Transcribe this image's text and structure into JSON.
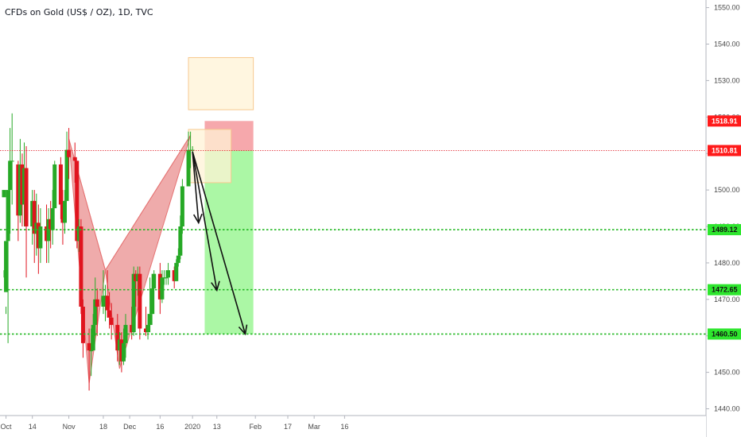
{
  "chart_title": "CFDs on Gold (US$ / OZ), 1D, TVC",
  "colors": {
    "up": "#26a926",
    "down": "#e0141e",
    "pattern": "#e57373",
    "support": "#22b822",
    "current": "#e0141e",
    "target_zone": "#a6f7a0",
    "stop_zone": "#f5a3a8",
    "box_fill": "#fff3d6",
    "box_stroke": "#f7c98f"
  },
  "chart_data": {
    "type": "candlestick",
    "y_range": [
      1438,
      1555
    ],
    "price_ticks": [
      1440,
      1450,
      1460,
      1470,
      1480,
      1490,
      1500,
      1510,
      1520,
      1530,
      1540,
      1550
    ],
    "x_tick_labels": [
      "Oct",
      "14",
      "Nov",
      "18",
      "Dec",
      "16",
      "2020",
      "13",
      "Feb",
      "17",
      "Mar",
      "16"
    ],
    "price_labels": [
      {
        "text": "1518.91",
        "value": 1518.91,
        "color": "red"
      },
      {
        "text": "1510.81",
        "value": 1510.81,
        "color": "red"
      },
      {
        "text": "1489.12",
        "value": 1489.12,
        "color": "green"
      },
      {
        "text": "1472.65",
        "value": 1472.65,
        "color": "green"
      },
      {
        "text": "1460.50",
        "value": 1460.5,
        "color": "green"
      }
    ],
    "candles": [
      [
        1498,
        1500,
        1478,
        1476,
        "2019-09-30"
      ],
      [
        1472,
        1486,
        1468,
        1466,
        "2019-10-01"
      ],
      [
        1486,
        1500,
        1486,
        1458,
        "2019-10-02"
      ],
      [
        1500,
        1508,
        1517,
        1488,
        "2019-10-03"
      ],
      [
        1508,
        1508,
        1521,
        1496,
        "2019-10-04"
      ],
      [
        1507,
        1493,
        1508,
        1486,
        "2019-10-07"
      ],
      [
        1493,
        1507,
        1514,
        1491,
        "2019-10-08"
      ],
      [
        1507,
        1496,
        1510,
        1490,
        "2019-10-09"
      ],
      [
        1496,
        1506,
        1513,
        1490,
        "2019-10-10"
      ],
      [
        1506,
        1490,
        1512,
        1476,
        "2019-10-11"
      ],
      [
        1490,
        1497,
        1500,
        1485,
        "2019-10-14"
      ],
      [
        1497,
        1488,
        1500,
        1480,
        "2019-10-15"
      ],
      [
        1488,
        1491,
        1499,
        1482,
        "2019-10-16"
      ],
      [
        1491,
        1484,
        1496,
        1477,
        "2019-10-17"
      ],
      [
        1484,
        1490,
        1495,
        1480,
        "2019-10-18"
      ],
      [
        1490,
        1486,
        1496,
        1480,
        "2019-10-21"
      ],
      [
        1486,
        1492,
        1495,
        1480,
        "2019-10-22"
      ],
      [
        1492,
        1489,
        1497,
        1484,
        "2019-10-23"
      ],
      [
        1489,
        1495,
        1500,
        1485,
        "2019-10-24"
      ],
      [
        1495,
        1507,
        1508,
        1495,
        "2019-10-25"
      ],
      [
        1507,
        1496,
        1509,
        1492,
        "2019-10-28"
      ],
      [
        1496,
        1491,
        1500,
        1485,
        "2019-10-29"
      ],
      [
        1491,
        1497,
        1500,
        1488,
        "2019-10-30"
      ],
      [
        1497,
        1511,
        1516,
        1497,
        "2019-10-31"
      ],
      [
        1511,
        1509,
        1517,
        1503,
        "2019-11-01"
      ],
      [
        1509,
        1508,
        1513,
        1502,
        "2019-11-04"
      ],
      [
        1508,
        1486,
        1508,
        1484,
        "2019-11-05"
      ],
      [
        1486,
        1490,
        1492,
        1483,
        "2019-11-06"
      ],
      [
        1490,
        1468,
        1492,
        1466,
        "2019-11-07"
      ],
      [
        1468,
        1458,
        1470,
        1454,
        "2019-11-08"
      ],
      [
        1458,
        1456,
        1462,
        1445,
        "2019-11-11"
      ],
      [
        1456,
        1456,
        1462,
        1449,
        "2019-11-12"
      ],
      [
        1456,
        1463,
        1466,
        1456,
        "2019-11-13"
      ],
      [
        1463,
        1470,
        1476,
        1460,
        "2019-11-14"
      ],
      [
        1470,
        1468,
        1473,
        1460,
        "2019-11-15"
      ],
      [
        1468,
        1471,
        1478,
        1466,
        "2019-11-18"
      ],
      [
        1471,
        1471,
        1474,
        1464,
        "2019-11-19"
      ],
      [
        1471,
        1467,
        1478,
        1465,
        "2019-11-20"
      ],
      [
        1467,
        1465,
        1472,
        1462,
        "2019-11-21"
      ],
      [
        1465,
        1463,
        1469,
        1459,
        "2019-11-22"
      ],
      [
        1463,
        1456,
        1466,
        1453,
        "2019-11-25"
      ],
      [
        1456,
        1459,
        1461,
        1452,
        "2019-11-26"
      ],
      [
        1459,
        1453,
        1461,
        1450,
        "2019-11-27"
      ],
      [
        1453,
        1458,
        1462,
        1452,
        "2019-11-28"
      ],
      [
        1458,
        1463,
        1466,
        1454,
        "2019-11-29"
      ],
      [
        1463,
        1461,
        1468,
        1459,
        "2019-12-02"
      ],
      [
        1461,
        1477,
        1479,
        1460,
        "2019-12-03"
      ],
      [
        1477,
        1475,
        1478,
        1468,
        "2019-12-04"
      ],
      [
        1475,
        1477,
        1479,
        1471,
        "2019-12-05"
      ],
      [
        1477,
        1462,
        1479,
        1459,
        "2019-12-06"
      ],
      [
        1462,
        1461,
        1468,
        1460,
        "2019-12-09"
      ],
      [
        1461,
        1463,
        1466,
        1459,
        "2019-12-10"
      ],
      [
        1463,
        1466,
        1476,
        1461,
        "2019-12-11"
      ],
      [
        1466,
        1473,
        1477,
        1463,
        "2019-12-12"
      ],
      [
        1473,
        1477,
        1478,
        1466,
        "2019-12-13"
      ],
      [
        1477,
        1470,
        1480,
        1466,
        "2019-12-16"
      ],
      [
        1470,
        1476,
        1478,
        1469,
        "2019-12-17"
      ],
      [
        1476,
        1476,
        1478,
        1474,
        "2019-12-18"
      ],
      [
        1476,
        1476,
        1478,
        1474,
        "2019-12-19"
      ],
      [
        1476,
        1478,
        1480,
        1474,
        "2019-12-20"
      ],
      [
        1478,
        1475,
        1479,
        1473,
        "2019-12-23"
      ],
      [
        1475,
        1480,
        1481,
        1475,
        "2019-12-24"
      ],
      [
        1480,
        1482,
        1484,
        1479,
        "2019-12-25"
      ],
      [
        1482,
        1490,
        1493,
        1481,
        "2019-12-26"
      ],
      [
        1490,
        1501,
        1503,
        1488,
        "2019-12-27"
      ],
      [
        1501,
        1511,
        1516,
        1502,
        "2019-12-30"
      ],
      [
        1511,
        1511,
        1516,
        1506,
        "2019-12-31"
      ],
      [
        1511,
        1511,
        1512,
        1510,
        "2020-01-01"
      ]
    ]
  },
  "patterns": [
    {
      "name": "bearish harmonic pattern",
      "points": [
        [
          "2019-11-01",
          1514
        ],
        [
          "2019-11-11",
          1447
        ],
        [
          "2019-11-19",
          1478
        ],
        [
          "2019-11-26",
          1451
        ],
        [
          "2019-12-31",
          1515
        ]
      ]
    }
  ],
  "trade_zones": [
    {
      "name": "stop zone",
      "from": "2020-01-07",
      "to": "2020-01-31",
      "top": 1518.91,
      "bottom": 1510.81
    },
    {
      "name": "target zone",
      "from": "2020-01-07",
      "to": "2020-01-31",
      "top": 1510.81,
      "bottom": 1460.5
    }
  ],
  "boxes": [
    {
      "from": "2019-12-30",
      "to": "2020-01-31",
      "top": 1536.3,
      "bottom": 1522
    },
    {
      "from": "2019-12-30",
      "to": "2020-01-20",
      "top": 1516.6,
      "bottom": 1502
    }
  ],
  "arrows": [
    {
      "from": [
        "2020-01-01",
        1510.5
      ],
      "to": [
        "2020-01-04",
        1491
      ]
    },
    {
      "from": [
        "2020-01-01",
        1510.5
      ],
      "to": [
        "2020-01-13",
        1472.5
      ]
    },
    {
      "from": [
        "2020-01-01",
        1510.5
      ],
      "to": [
        "2020-01-27",
        1460.5
      ]
    }
  ]
}
